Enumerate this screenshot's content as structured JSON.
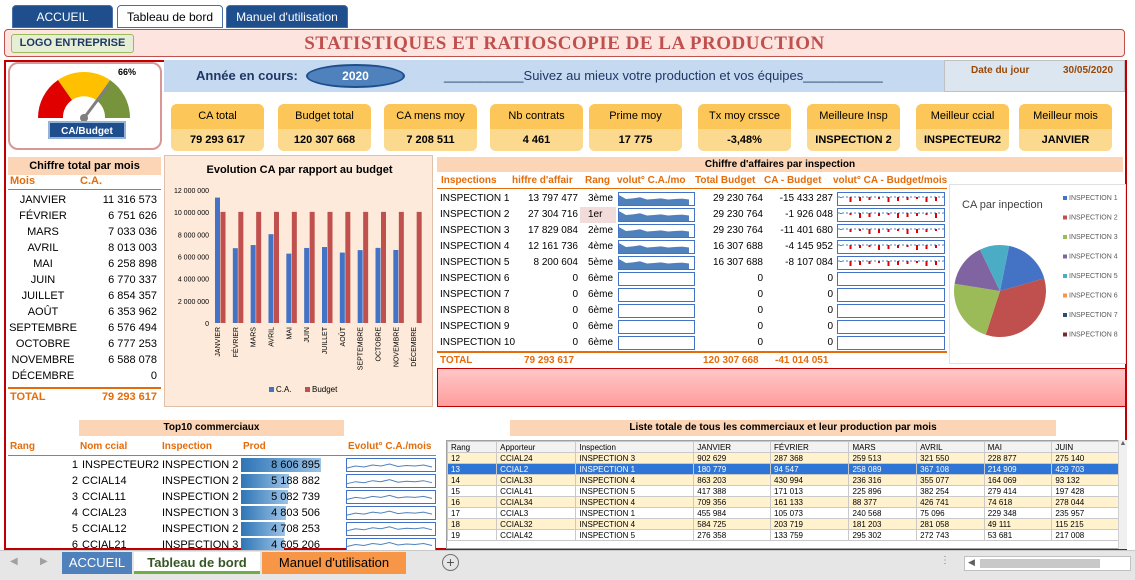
{
  "nav": {
    "tabs": [
      "ACCUEIL",
      "Tableau de bord",
      "Manuel d'utilisation"
    ]
  },
  "banner": {
    "logo": "LOGO ENTREPRISE",
    "title": "STATISTIQUES ET RATIOSCOPIE DE LA PRODUCTION"
  },
  "gauge": {
    "percent_label": "66%",
    "level": 0.66,
    "caption": "CA/Budget"
  },
  "year": {
    "label": "Année en cours:",
    "value": "2020",
    "slogan": "___________Suivez au mieux votre production et vos équipes___________"
  },
  "date": {
    "label": "Date du jour",
    "value": "30/05/2020"
  },
  "kpis": [
    {
      "label": "CA total",
      "value": "79 293 617"
    },
    {
      "label": "Budget total",
      "value": "120 307 668"
    },
    {
      "label": "CA mens moy",
      "value": "7 208 511"
    },
    {
      "label": "Nb contrats",
      "value": "4 461"
    },
    {
      "label": "Prime moy",
      "value": "17 775"
    },
    {
      "label": "Tx moy crssce",
      "value": "-3,48%"
    },
    {
      "label": "Meilleure Insp",
      "value": "INSPECTION 2"
    },
    {
      "label": "Meilleur ccial",
      "value": "INSPECTEUR2"
    },
    {
      "label": "Meilleur mois",
      "value": "JANVIER"
    }
  ],
  "monthly": {
    "title": "Chiffre total par mois",
    "col_month": "Mois",
    "col_ca": "C.A.",
    "rows": [
      {
        "m": "JANVIER",
        "v": "11 316 573"
      },
      {
        "m": "FÉVRIER",
        "v": "6 751 626"
      },
      {
        "m": "MARS",
        "v": "7 033 036"
      },
      {
        "m": "AVRIL",
        "v": "8 013 003"
      },
      {
        "m": "MAI",
        "v": "6 258 898"
      },
      {
        "m": "JUIN",
        "v": "6 770 337"
      },
      {
        "m": "JUILLET",
        "v": "6 854 357"
      },
      {
        "m": "AOÛT",
        "v": "6 353 962"
      },
      {
        "m": "SEPTEMBRE",
        "v": "6 576 494"
      },
      {
        "m": "OCTOBRE",
        "v": "6 777 253"
      },
      {
        "m": "NOVEMBRE",
        "v": "6 588 078"
      },
      {
        "m": "DÉCEMBRE",
        "v": "0"
      }
    ],
    "total_label": "TOTAL",
    "total_value": "79 293 617"
  },
  "chart_data": [
    {
      "type": "bar",
      "title": "Evolution CA par rapport au budget",
      "categories": [
        "JANVIER",
        "FÉVRIER",
        "MARS",
        "AVRIL",
        "MAI",
        "JUIN",
        "JUILLET",
        "AOÛT",
        "SEPTEMBRE",
        "OCTOBRE",
        "NOVEMBRE",
        "DÉCEMBRE"
      ],
      "series": [
        {
          "name": "C.A.",
          "color": "#4472c4",
          "values": [
            11316573,
            6751626,
            7033036,
            8013003,
            6258898,
            6770337,
            6854357,
            6353962,
            6576494,
            6777253,
            6588078,
            0
          ]
        },
        {
          "name": "Budget",
          "color": "#c0504d",
          "values": [
            10025639,
            10025639,
            10025639,
            10025639,
            10025639,
            10025639,
            10025639,
            10025639,
            10025639,
            10025639,
            10025639,
            10025639
          ]
        }
      ],
      "yticks": [
        "12 000 000",
        "10 000 000",
        "8 000 000",
        "6 000 000",
        "4 000 000",
        "2 000 000",
        "0"
      ],
      "ylim": [
        0,
        12000000
      ],
      "legend": "bottom"
    },
    {
      "type": "pie",
      "title": "CA par inpection",
      "categories": [
        "INSPECTION 1",
        "INSPECTION 2",
        "INSPECTION 3",
        "INSPECTION 4",
        "INSPECTION 5",
        "INSPECTION 6",
        "INSPECTION 7",
        "INSPECTION 8"
      ],
      "values": [
        13797477,
        27304716,
        17829084,
        12161736,
        8200604,
        0,
        0,
        0
      ],
      "colors": [
        "#4472c4",
        "#c0504d",
        "#9bbb59",
        "#8064a2",
        "#4bacc6",
        "#f79646",
        "#2c4d75",
        "#772c2a"
      ],
      "legend": "right"
    }
  ],
  "inspections": {
    "title": "Chiffre d'affaires par inspection",
    "headers": [
      "Inspections",
      "hiffre d'affair",
      "Rang",
      "volut° C.A./mo",
      "Total Budget",
      "CA - Budget",
      "volut° CA - Budget/mois"
    ],
    "rows": [
      {
        "name": "INSPECTION 1",
        "ca": "13 797 477",
        "rank": "3ème",
        "budget": "29 230 764",
        "diff": "-15 433 287"
      },
      {
        "name": "INSPECTION 2",
        "ca": "27 304 716",
        "rank": "1er",
        "budget": "29 230 764",
        "diff": "-1 926 048"
      },
      {
        "name": "INSPECTION 3",
        "ca": "17 829 084",
        "rank": "2ème",
        "budget": "29 230 764",
        "diff": "-11 401 680"
      },
      {
        "name": "INSPECTION 4",
        "ca": "12 161 736",
        "rank": "4ème",
        "budget": "16 307 688",
        "diff": "-4 145 952"
      },
      {
        "name": "INSPECTION 5",
        "ca": "8 200 604",
        "rank": "5ème",
        "budget": "16 307 688",
        "diff": "-8 107 084"
      },
      {
        "name": "INSPECTION 6",
        "ca": "0",
        "rank": "6ème",
        "budget": "0",
        "diff": "0"
      },
      {
        "name": "INSPECTION 7",
        "ca": "0",
        "rank": "6ème",
        "budget": "0",
        "diff": "0"
      },
      {
        "name": "INSPECTION 8",
        "ca": "0",
        "rank": "6ème",
        "budget": "0",
        "diff": "0"
      },
      {
        "name": "INSPECTION 9",
        "ca": "0",
        "rank": "6ème",
        "budget": "0",
        "diff": "0"
      },
      {
        "name": "INSPECTION 10",
        "ca": "0",
        "rank": "6ème",
        "budget": "0",
        "diff": "0"
      }
    ],
    "total_label": "TOTAL",
    "total_ca": "79 293 617",
    "total_budget": "120 307 668",
    "total_diff": "-41 014 051"
  },
  "top10": {
    "title": "Top10 commerciaux",
    "headers": [
      "Rang",
      "Nom ccial",
      "Inspection",
      "Prod",
      "Evolut° C.A./mois"
    ],
    "rows": [
      {
        "r": "1",
        "n": "INSPECTEUR2",
        "i": "INSPECTION 2",
        "p": "8 606 895",
        "level": 1.0
      },
      {
        "r": "2",
        "n": "CCIAL14",
        "i": "INSPECTION 2",
        "p": "5 188 882",
        "level": 0.6
      },
      {
        "r": "3",
        "n": "CCIAL11",
        "i": "INSPECTION 2",
        "p": "5 082 739",
        "level": 0.59
      },
      {
        "r": "4",
        "n": "CCIAL23",
        "i": "INSPECTION 3",
        "p": "4 803 506",
        "level": 0.56
      },
      {
        "r": "5",
        "n": "CCIAL12",
        "i": "INSPECTION 2",
        "p": "4 708 253",
        "level": 0.55
      },
      {
        "r": "6",
        "n": "CCIAL21",
        "i": "INSPECTION 3",
        "p": "4 605 206",
        "level": 0.54
      }
    ]
  },
  "list": {
    "title": "Liste totale de tous les commerciaux et leur production par mois",
    "headers": [
      "Rang",
      "Apporteur",
      "Inspection",
      "JANVIER",
      "FÉVRIER",
      "MARS",
      "AVRIL",
      "MAI",
      "JUIN"
    ],
    "rows": [
      [
        "12",
        "CCIAL24",
        "INSPECTION 3",
        "902 629",
        "287 368",
        "259 513",
        "321 550",
        "228 877",
        "275 140"
      ],
      [
        "13",
        "CCIAL2",
        "INSPECTION 1",
        "180 779",
        "94 547",
        "258 089",
        "367 108",
        "214 909",
        "429 703"
      ],
      [
        "14",
        "CCIAL33",
        "INSPECTION 4",
        "863 203",
        "430 994",
        "236 316",
        "355 077",
        "164 069",
        "93 132"
      ],
      [
        "15",
        "CCIAL41",
        "INSPECTION 5",
        "417 388",
        "171 013",
        "225 896",
        "382 254",
        "279 414",
        "197 428"
      ],
      [
        "16",
        "CCIAL34",
        "INSPECTION 4",
        "709 356",
        "161 133",
        "88 377",
        "426 741",
        "74 618",
        "278 044"
      ],
      [
        "17",
        "CCIAL3",
        "INSPECTION 1",
        "455 984",
        "105 073",
        "240 568",
        "75 096",
        "229 348",
        "235 957"
      ],
      [
        "18",
        "CCIAL32",
        "INSPECTION 4",
        "584 725",
        "203 719",
        "181 203",
        "281 058",
        "49 111",
        "115 215"
      ],
      [
        "19",
        "CCIAL42",
        "INSPECTION 5",
        "276 358",
        "133 759",
        "295 302",
        "272 743",
        "53 681",
        "217 008"
      ]
    ],
    "selected_row": 1
  },
  "sheet_tabs": [
    "ACCUEIL",
    "Tableau de bord",
    "Manuel d'utilisation"
  ]
}
